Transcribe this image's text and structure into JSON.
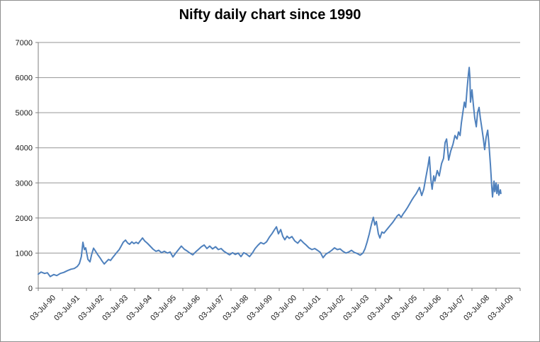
{
  "chart": {
    "title": "Nifty daily chart since 1990",
    "colors": {
      "line": "#4F81BD",
      "grid": "#969696",
      "axis": "#7f7f7f",
      "text": "#1a1a1a",
      "background": "#ffffff",
      "frame_border": "#8f8f8f"
    }
  },
  "chart_data": {
    "type": "line",
    "title": "Nifty daily chart since 1990",
    "xlabel": "",
    "ylabel": "",
    "legend": "none",
    "grid": "horizontal",
    "ylim": [
      0,
      7000
    ],
    "y_ticks": [
      0,
      1000,
      2000,
      3000,
      4000,
      5000,
      6000,
      7000
    ],
    "x_tick_labels": [
      "03-Jul-90",
      "03-Jul-91",
      "03-Jul-92",
      "03-Jul-93",
      "03-Jul-94",
      "03-Jul-95",
      "03-Jul-96",
      "03-Jul-97",
      "03-Jul-98",
      "03-Jul-99",
      "03-Jul-00",
      "03-Jul-01",
      "03-Jul-02",
      "03-Jul-03",
      "03-Jul-04",
      "03-Jul-05",
      "03-Jul-06",
      "03-Jul-07",
      "03-Jul-08",
      "03-Jul-09"
    ],
    "x_unit": "years since 03-Jul-1990",
    "x_range": [
      0,
      19
    ],
    "series": [
      {
        "name": "Nifty",
        "points": [
          [
            0.0,
            400
          ],
          [
            0.11,
            460
          ],
          [
            0.25,
            420
          ],
          [
            0.36,
            440
          ],
          [
            0.47,
            330
          ],
          [
            0.61,
            390
          ],
          [
            0.73,
            360
          ],
          [
            0.87,
            420
          ],
          [
            1.01,
            450
          ],
          [
            1.15,
            500
          ],
          [
            1.29,
            540
          ],
          [
            1.42,
            560
          ],
          [
            1.54,
            620
          ],
          [
            1.62,
            700
          ],
          [
            1.7,
            900
          ],
          [
            1.76,
            1310
          ],
          [
            1.82,
            1100
          ],
          [
            1.87,
            1150
          ],
          [
            1.96,
            820
          ],
          [
            2.04,
            750
          ],
          [
            2.1,
            950
          ],
          [
            2.18,
            1140
          ],
          [
            2.26,
            1050
          ],
          [
            2.35,
            950
          ],
          [
            2.43,
            870
          ],
          [
            2.51,
            780
          ],
          [
            2.6,
            690
          ],
          [
            2.68,
            750
          ],
          [
            2.77,
            820
          ],
          [
            2.85,
            790
          ],
          [
            2.93,
            870
          ],
          [
            3.02,
            950
          ],
          [
            3.1,
            1020
          ],
          [
            3.19,
            1100
          ],
          [
            3.27,
            1200
          ],
          [
            3.35,
            1310
          ],
          [
            3.44,
            1370
          ],
          [
            3.52,
            1290
          ],
          [
            3.6,
            1250
          ],
          [
            3.69,
            1320
          ],
          [
            3.77,
            1270
          ],
          [
            3.86,
            1310
          ],
          [
            3.94,
            1270
          ],
          [
            4.02,
            1350
          ],
          [
            4.11,
            1430
          ],
          [
            4.19,
            1350
          ],
          [
            4.3,
            1280
          ],
          [
            4.41,
            1200
          ],
          [
            4.53,
            1110
          ],
          [
            4.64,
            1050
          ],
          [
            4.75,
            1080
          ],
          [
            4.86,
            1010
          ],
          [
            4.97,
            1050
          ],
          [
            5.09,
            1000
          ],
          [
            5.2,
            1030
          ],
          [
            5.31,
            890
          ],
          [
            5.42,
            1000
          ],
          [
            5.53,
            1100
          ],
          [
            5.64,
            1200
          ],
          [
            5.76,
            1110
          ],
          [
            5.87,
            1060
          ],
          [
            5.98,
            1000
          ],
          [
            6.09,
            950
          ],
          [
            6.2,
            1030
          ],
          [
            6.31,
            1100
          ],
          [
            6.43,
            1180
          ],
          [
            6.54,
            1230
          ],
          [
            6.65,
            1130
          ],
          [
            6.76,
            1200
          ],
          [
            6.87,
            1120
          ],
          [
            6.99,
            1180
          ],
          [
            7.1,
            1100
          ],
          [
            7.21,
            1130
          ],
          [
            7.32,
            1050
          ],
          [
            7.43,
            1000
          ],
          [
            7.54,
            950
          ],
          [
            7.66,
            1010
          ],
          [
            7.77,
            960
          ],
          [
            7.88,
            1000
          ],
          [
            7.99,
            900
          ],
          [
            8.1,
            1010
          ],
          [
            8.21,
            970
          ],
          [
            8.33,
            900
          ],
          [
            8.44,
            1000
          ],
          [
            8.55,
            1130
          ],
          [
            8.66,
            1220
          ],
          [
            8.77,
            1300
          ],
          [
            8.89,
            1260
          ],
          [
            9.0,
            1320
          ],
          [
            9.11,
            1450
          ],
          [
            9.22,
            1560
          ],
          [
            9.3,
            1650
          ],
          [
            9.39,
            1750
          ],
          [
            9.47,
            1550
          ],
          [
            9.56,
            1670
          ],
          [
            9.64,
            1480
          ],
          [
            9.72,
            1380
          ],
          [
            9.81,
            1480
          ],
          [
            9.89,
            1420
          ],
          [
            10.0,
            1470
          ],
          [
            10.11,
            1350
          ],
          [
            10.23,
            1280
          ],
          [
            10.34,
            1380
          ],
          [
            10.45,
            1300
          ],
          [
            10.56,
            1230
          ],
          [
            10.67,
            1150
          ],
          [
            10.79,
            1100
          ],
          [
            10.9,
            1130
          ],
          [
            11.01,
            1080
          ],
          [
            11.12,
            1020
          ],
          [
            11.23,
            870
          ],
          [
            11.34,
            970
          ],
          [
            11.46,
            1020
          ],
          [
            11.57,
            1080
          ],
          [
            11.68,
            1150
          ],
          [
            11.79,
            1100
          ],
          [
            11.9,
            1120
          ],
          [
            12.01,
            1050
          ],
          [
            12.13,
            1000
          ],
          [
            12.24,
            1030
          ],
          [
            12.35,
            1080
          ],
          [
            12.46,
            1020
          ],
          [
            12.57,
            990
          ],
          [
            12.69,
            940
          ],
          [
            12.8,
            1000
          ],
          [
            12.88,
            1120
          ],
          [
            12.96,
            1300
          ],
          [
            13.05,
            1550
          ],
          [
            13.13,
            1800
          ],
          [
            13.21,
            2020
          ],
          [
            13.27,
            1800
          ],
          [
            13.33,
            1900
          ],
          [
            13.41,
            1550
          ],
          [
            13.47,
            1430
          ],
          [
            13.55,
            1600
          ],
          [
            13.63,
            1570
          ],
          [
            13.72,
            1650
          ],
          [
            13.8,
            1720
          ],
          [
            13.89,
            1800
          ],
          [
            13.97,
            1870
          ],
          [
            14.05,
            1950
          ],
          [
            14.14,
            2050
          ],
          [
            14.22,
            2100
          ],
          [
            14.31,
            2020
          ],
          [
            14.39,
            2120
          ],
          [
            14.47,
            2200
          ],
          [
            14.56,
            2300
          ],
          [
            14.64,
            2400
          ],
          [
            14.72,
            2500
          ],
          [
            14.81,
            2600
          ],
          [
            14.89,
            2680
          ],
          [
            14.98,
            2800
          ],
          [
            15.03,
            2870
          ],
          [
            15.12,
            2640
          ],
          [
            15.2,
            2820
          ],
          [
            15.28,
            3150
          ],
          [
            15.37,
            3500
          ],
          [
            15.42,
            3740
          ],
          [
            15.48,
            3100
          ],
          [
            15.53,
            2820
          ],
          [
            15.59,
            3200
          ],
          [
            15.64,
            3050
          ],
          [
            15.73,
            3350
          ],
          [
            15.81,
            3200
          ],
          [
            15.9,
            3550
          ],
          [
            15.98,
            3700
          ],
          [
            16.04,
            4150
          ],
          [
            16.1,
            4250
          ],
          [
            16.18,
            3650
          ],
          [
            16.26,
            3900
          ],
          [
            16.35,
            4100
          ],
          [
            16.43,
            4350
          ],
          [
            16.51,
            4250
          ],
          [
            16.57,
            4450
          ],
          [
            16.63,
            4350
          ],
          [
            16.68,
            4700
          ],
          [
            16.74,
            5000
          ],
          [
            16.8,
            5300
          ],
          [
            16.85,
            5150
          ],
          [
            16.91,
            5700
          ],
          [
            16.96,
            6100
          ],
          [
            16.99,
            6290
          ],
          [
            17.02,
            6000
          ],
          [
            17.04,
            5300
          ],
          [
            17.1,
            5650
          ],
          [
            17.16,
            5200
          ],
          [
            17.21,
            4850
          ],
          [
            17.27,
            4600
          ],
          [
            17.32,
            5000
          ],
          [
            17.38,
            5150
          ],
          [
            17.43,
            4850
          ],
          [
            17.49,
            4550
          ],
          [
            17.55,
            4250
          ],
          [
            17.6,
            3950
          ],
          [
            17.66,
            4300
          ],
          [
            17.72,
            4500
          ],
          [
            17.77,
            4100
          ],
          [
            17.83,
            3500
          ],
          [
            17.88,
            2900
          ],
          [
            17.91,
            2600
          ],
          [
            17.97,
            3050
          ],
          [
            18.0,
            2750
          ],
          [
            18.05,
            3000
          ],
          [
            18.08,
            2700
          ],
          [
            18.13,
            2950
          ],
          [
            18.16,
            2650
          ],
          [
            18.22,
            2800
          ],
          [
            18.24,
            2700
          ]
        ]
      }
    ]
  }
}
